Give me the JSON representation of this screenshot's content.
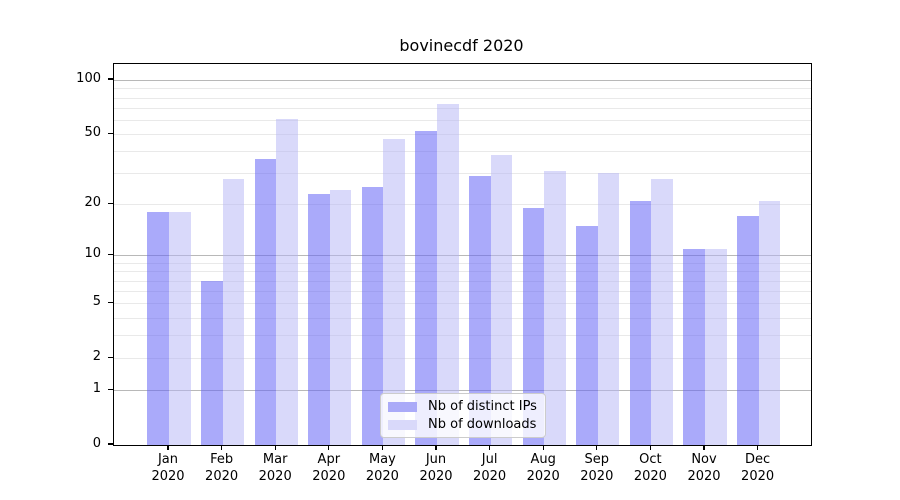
{
  "title": "bovinecdf 2020",
  "chart_data": {
    "type": "bar",
    "title": "bovinecdf 2020",
    "categories": [
      "Jan",
      "Feb",
      "Mar",
      "Apr",
      "May",
      "Jun",
      "Jul",
      "Aug",
      "Sep",
      "Oct",
      "Nov",
      "Dec"
    ],
    "x_year_label": "2020",
    "series": [
      {
        "name": "Nb of distinct IPs",
        "values": [
          18,
          7,
          36,
          23,
          25,
          52,
          29,
          19,
          15,
          21,
          11,
          17
        ],
        "fill": "#6464f5",
        "alpha": 0.55,
        "appears_as": "#aaaaf8"
      },
      {
        "name": "Nb of downloads",
        "values": [
          18,
          28,
          61,
          24,
          47,
          74,
          38,
          31,
          30,
          28,
          11,
          21
        ],
        "fill": "#b4b4f5",
        "alpha": 0.5,
        "appears_as": "#d9d9fa"
      }
    ],
    "y_scale": "log10(value+1)",
    "y_tick_labels": [
      "100",
      "50",
      "20",
      "10",
      "5",
      "2",
      "1",
      "0"
    ],
    "y_tick_values": [
      100,
      50,
      20,
      10,
      5,
      2,
      1,
      0
    ],
    "y_major_gridlines": [
      1,
      10,
      100
    ],
    "y_minor_gridlines": [
      2,
      3,
      4,
      5,
      6,
      7,
      8,
      9,
      20,
      30,
      40,
      50,
      60,
      70,
      80,
      90
    ],
    "ylim": [
      0,
      123
    ],
    "grid": true,
    "legend_position": "lower center",
    "colors": {
      "spine": "#000000",
      "major_grid": "#b8b8b8",
      "minor_grid": "#e9e9e9",
      "text": "#000000",
      "legend_border": "#cccccc"
    }
  }
}
